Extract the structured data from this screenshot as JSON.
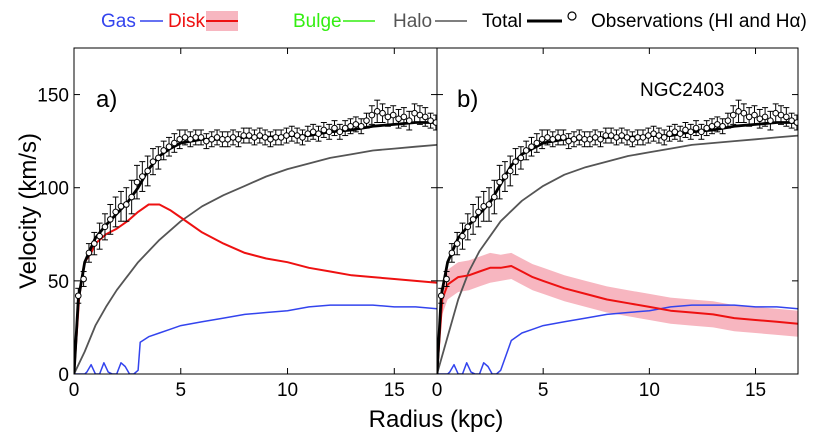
{
  "chart_data": {
    "type": "line",
    "title": "",
    "galaxy_label": "NGC2403",
    "xlabel": "Radius (kpc)",
    "ylabel": "Velocity (km/s)",
    "xlim": [
      0,
      17
    ],
    "ylim": [
      0,
      175
    ],
    "xticks": [
      "0",
      "5",
      "10",
      "15"
    ],
    "yticks": [
      "0",
      "50",
      "100",
      "150"
    ],
    "legend": {
      "gas": "Gas",
      "disk": "Disk",
      "bulge": "Bulge",
      "halo": "Halo",
      "total": "Total",
      "observations": "Observations (HI and Hα)"
    },
    "colors": {
      "gas": "#3344ee",
      "disk": "#ee1111",
      "disk_band": "#f7b6c0",
      "bulge": "#33ee11",
      "halo": "#555555",
      "total": "#000000",
      "obs": "#000000"
    },
    "observations": {
      "x": [
        0.2,
        0.45,
        0.7,
        0.95,
        1.2,
        1.45,
        1.7,
        1.95,
        2.2,
        2.45,
        2.7,
        2.95,
        3.2,
        3.45,
        3.7,
        3.95,
        4.2,
        4.45,
        4.7,
        4.95,
        5.2,
        5.45,
        5.7,
        5.95,
        6.2,
        6.45,
        6.7,
        6.95,
        7.2,
        7.45,
        7.7,
        7.95,
        8.2,
        8.45,
        8.7,
        8.95,
        9.2,
        9.45,
        9.7,
        9.95,
        10.2,
        10.45,
        10.7,
        10.95,
        11.2,
        11.45,
        11.7,
        11.95,
        12.2,
        12.45,
        12.7,
        12.95,
        13.2,
        13.45,
        13.7,
        13.95,
        14.2,
        14.45,
        14.7,
        14.95,
        15.2,
        15.45,
        15.7,
        15.95,
        16.2,
        16.45,
        16.7,
        16.95
      ],
      "y": [
        42,
        51,
        65,
        70,
        74,
        79,
        83,
        87,
        90,
        91,
        95,
        103,
        106,
        109,
        114,
        116,
        120,
        122,
        124,
        126,
        127,
        126,
        127,
        127,
        125,
        126,
        127,
        126,
        126,
        127,
        126,
        128,
        128,
        127,
        128,
        127,
        126,
        127,
        127,
        128,
        129,
        128,
        127,
        129,
        130,
        129,
        131,
        130,
        132,
        130,
        132,
        133,
        134,
        133,
        136,
        139,
        141,
        140,
        138,
        139,
        137,
        138,
        136,
        140,
        139,
        138,
        136,
        135
      ],
      "err": [
        4,
        4,
        5,
        6,
        7,
        7,
        8,
        8,
        8,
        9,
        9,
        9,
        8,
        8,
        7,
        6,
        5,
        5,
        5,
        5,
        4,
        4,
        4,
        4,
        4,
        4,
        4,
        4,
        4,
        4,
        4,
        4,
        4,
        4,
        4,
        4,
        4,
        4,
        4,
        4,
        4,
        4,
        4,
        4,
        4,
        4,
        4,
        4,
        4,
        4,
        4,
        4,
        4,
        4,
        4,
        5,
        6,
        5,
        5,
        5,
        5,
        5,
        5,
        5,
        5,
        5,
        4,
        4
      ]
    },
    "panels": [
      {
        "label": "a)",
        "series": [
          {
            "name": "Gas",
            "x": [
              0,
              0.5,
              0.6,
              0.8,
              1.0,
              1.2,
              1.4,
              1.6,
              1.8,
              2.0,
              2.2,
              2.4,
              2.6,
              2.8,
              3.0,
              3.1,
              3.5,
              4,
              4.5,
              5,
              6,
              7,
              8,
              9,
              10,
              11,
              12,
              13,
              14,
              15,
              16,
              17
            ],
            "y": [
              0,
              0,
              1,
              5,
              0,
              0,
              6,
              1,
              0,
              0,
              6,
              4,
              0,
              0,
              2,
              17,
              20,
              22,
              24,
              26,
              28,
              30,
              32,
              33,
              34,
              36,
              37,
              37,
              37,
              36,
              36,
              35
            ]
          },
          {
            "name": "Disk",
            "x": [
              0,
              0.25,
              0.5,
              0.8,
              1,
              1.5,
              2,
              2.5,
              3,
              3.5,
              4,
              4.5,
              5,
              6,
              7,
              8,
              9,
              10,
              11,
              12,
              13,
              14,
              15,
              16,
              17
            ],
            "y": [
              0,
              42,
              60,
              65,
              70,
              75,
              78,
              82,
              87,
              91,
              91,
              88,
              84,
              76,
              70,
              65,
              62,
              60,
              57,
              55,
              53,
              52,
              51,
              50,
              49
            ]
          },
          {
            "name": "Halo",
            "x": [
              0,
              0.5,
              1,
              1.5,
              2,
              3,
              4,
              5,
              6,
              7,
              8,
              9,
              10,
              11,
              12,
              13,
              14,
              15,
              16,
              17
            ],
            "y": [
              0,
              12,
              26,
              36,
              45,
              60,
              72,
              82,
              90,
              96,
              101,
              106,
              110,
              113,
              116,
              118,
              120,
              121,
              122,
              123
            ]
          },
          {
            "name": "Total",
            "x": [
              0,
              0.2,
              0.5,
              1,
              1.5,
              2,
              2.5,
              3,
              3.5,
              4,
              4.5,
              5,
              5.5,
              6,
              7,
              8,
              9,
              10,
              11,
              12,
              13,
              14,
              15,
              16,
              17
            ],
            "y": [
              0,
              40,
              60,
              73,
              80,
              86,
              92,
              100,
              110,
              117,
              121,
              124,
              125,
              126,
              126,
              127,
              127,
              128,
              128,
              130,
              131,
              133,
              134,
              135,
              135
            ]
          }
        ]
      },
      {
        "label": "b)",
        "series": [
          {
            "name": "Gas",
            "x": [
              0,
              0.5,
              0.6,
              0.8,
              1.0,
              1.2,
              1.4,
              1.6,
              1.8,
              2.0,
              2.2,
              2.4,
              2.6,
              2.8,
              3.0,
              3.5,
              4,
              4.5,
              5,
              6,
              7,
              8,
              9,
              10,
              11,
              12,
              13,
              14,
              15,
              16,
              17
            ],
            "y": [
              0,
              0,
              1,
              5,
              0,
              0,
              6,
              1,
              0,
              0,
              6,
              4,
              0,
              0,
              2,
              18,
              22,
              24,
              26,
              28,
              30,
              32,
              33,
              34,
              36,
              37,
              37,
              37,
              36,
              36,
              35
            ]
          },
          {
            "name": "Disk",
            "x": [
              0,
              0.25,
              0.5,
              1,
              1.5,
              2,
              2.5,
              3,
              3.5,
              4,
              4.5,
              5,
              6,
              7,
              8,
              9,
              10,
              11,
              12,
              13,
              14,
              15,
              16,
              17
            ],
            "y": [
              0,
              40,
              48,
              52,
              53,
              55,
              57,
              57,
              58,
              55,
              52,
              50,
              46,
              43,
              40,
              38,
              36,
              34,
              33,
              32,
              30,
              29,
              28,
              27
            ],
            "band_low": [
              0,
              32,
              40,
              44,
              45,
              47,
              49,
              50,
              51,
              48,
              45,
              43,
              39,
              36,
              33,
              31,
              29,
              27,
              26,
              25,
              23,
              22,
              21,
              20
            ],
            "band_high": [
              0,
              48,
              56,
              60,
              61,
              63,
              65,
              64,
              65,
              62,
              59,
              57,
              53,
              50,
              47,
              45,
              43,
              41,
              40,
              39,
              37,
              36,
              35,
              34
            ]
          },
          {
            "name": "Halo",
            "x": [
              0,
              0.5,
              1,
              1.5,
              2,
              3,
              4,
              5,
              6,
              7,
              8,
              9,
              10,
              11,
              12,
              13,
              14,
              15,
              16,
              17
            ],
            "y": [
              0,
              20,
              40,
              55,
              66,
              82,
              93,
              101,
              107,
              111,
              114,
              117,
              119,
              121,
              123,
              124,
              125,
              126,
              127,
              128
            ]
          },
          {
            "name": "Total",
            "x": [
              0,
              0.2,
              0.5,
              1,
              1.5,
              2,
              2.5,
              3,
              3.5,
              4,
              4.5,
              5,
              5.5,
              6,
              7,
              8,
              9,
              10,
              11,
              12,
              13,
              14,
              15,
              16,
              17
            ],
            "y": [
              0,
              42,
              60,
              73,
              80,
              86,
              92,
              102,
              112,
              118,
              121,
              124,
              125,
              126,
              126,
              127,
              127,
              128,
              128,
              130,
              131,
              133,
              134,
              135,
              135
            ]
          }
        ]
      }
    ]
  }
}
